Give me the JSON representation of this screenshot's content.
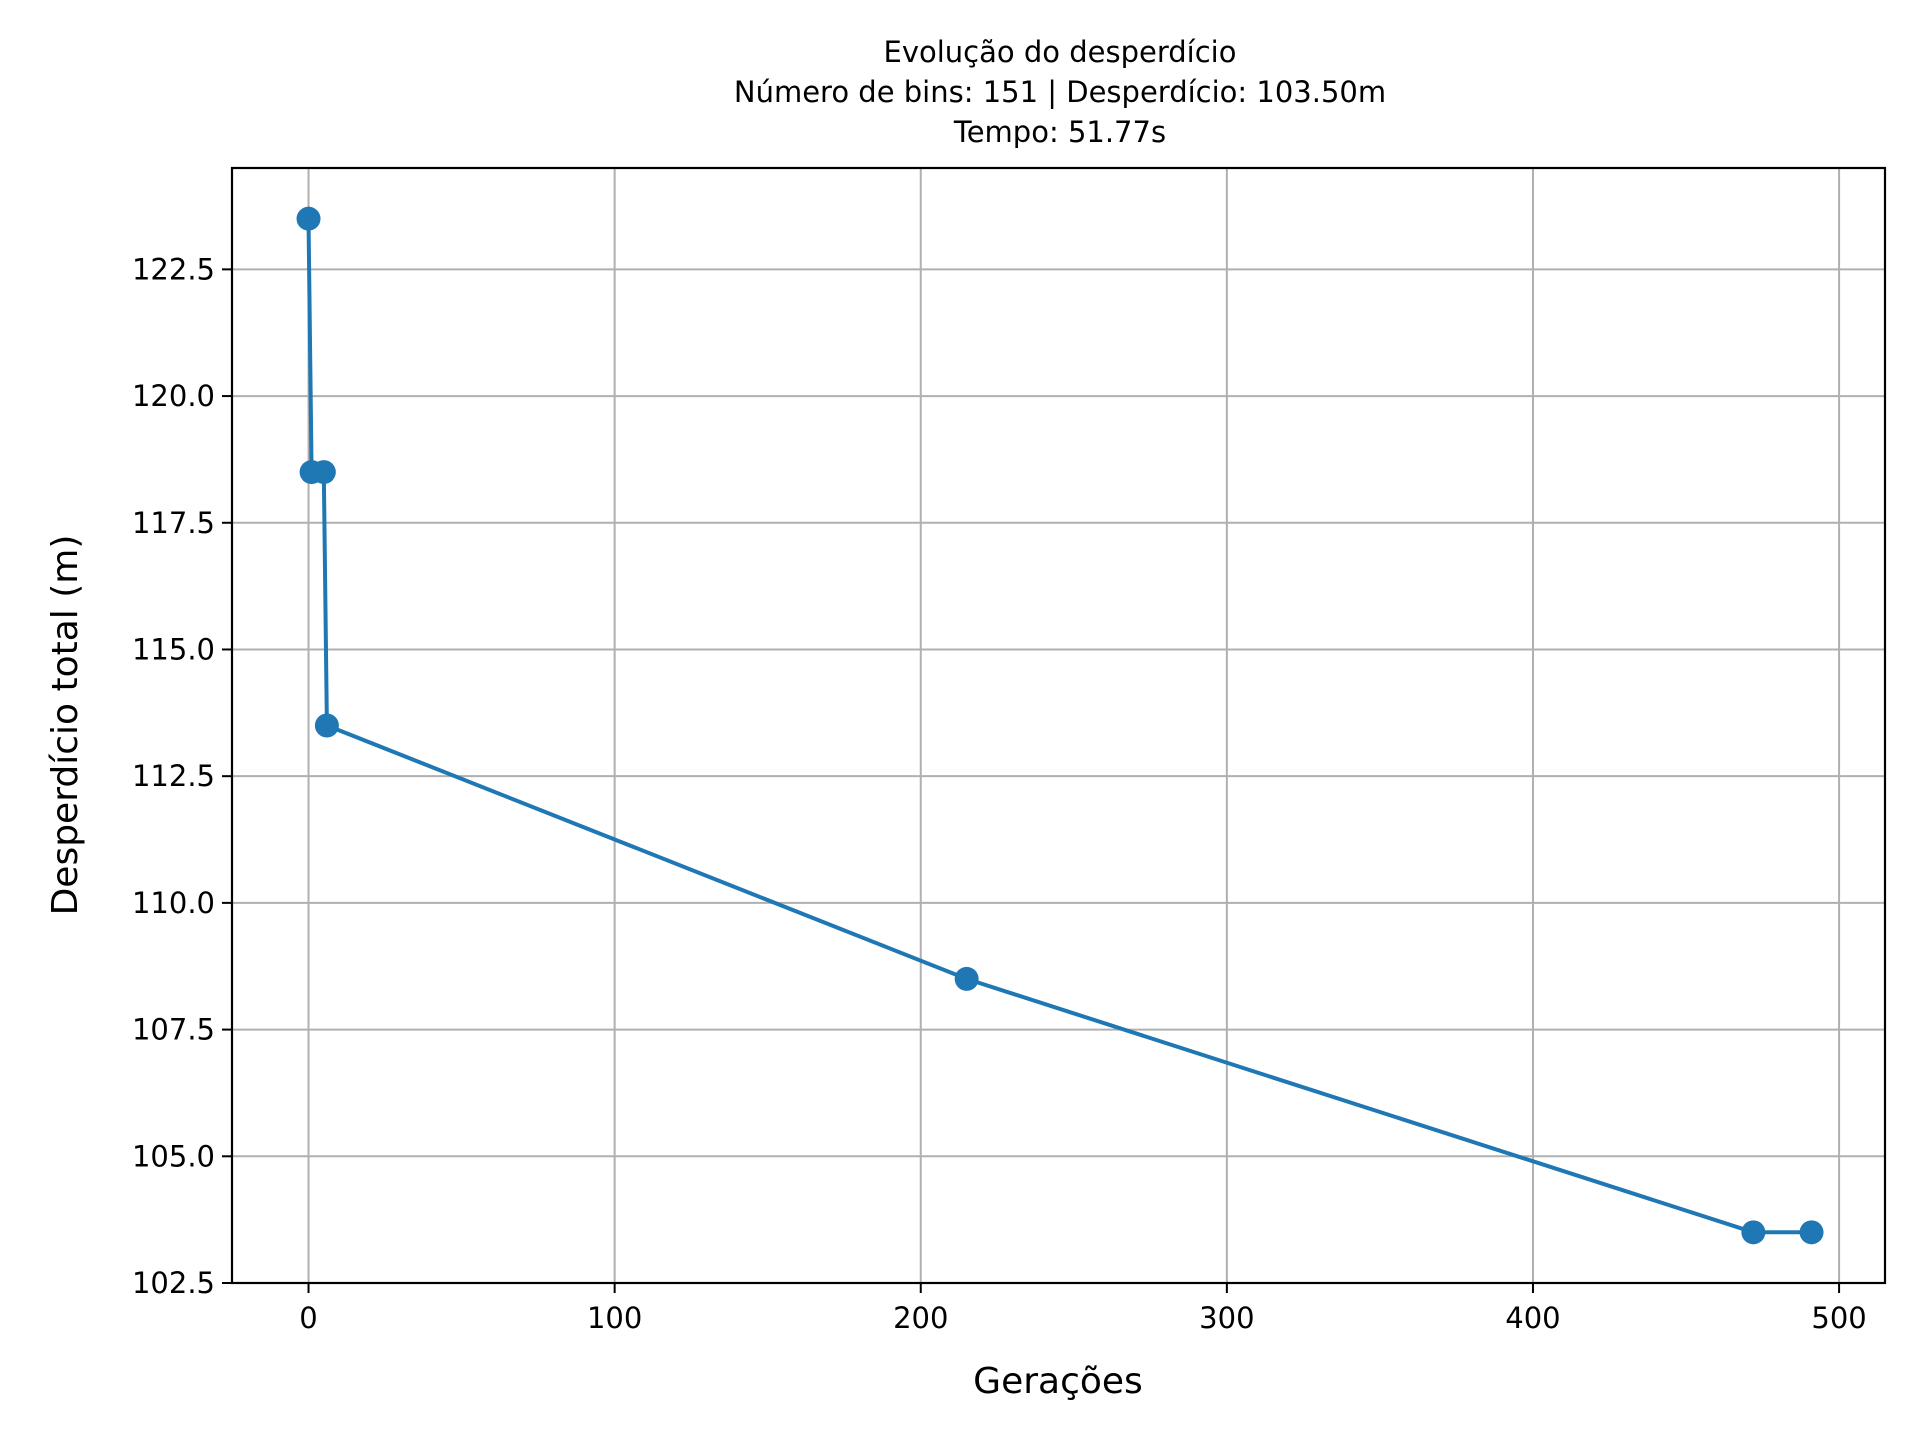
{
  "chart_data": {
    "type": "line",
    "title_lines": [
      "Evolução do desperdício",
      "Número de bins: 151 | Desperdício: 103.50m",
      "Tempo: 51.77s"
    ],
    "xlabel": "Gerações",
    "ylabel": "Desperdício total (m)",
    "xlim": [
      -25,
      515
    ],
    "ylim": [
      102.5,
      124.5
    ],
    "xticks": [
      0,
      100,
      200,
      300,
      400,
      500
    ],
    "xtick_labels": [
      "0",
      "100",
      "200",
      "300",
      "400",
      "500"
    ],
    "yticks": [
      102.5,
      105.0,
      107.5,
      110.0,
      112.5,
      115.0,
      117.5,
      120.0,
      122.5
    ],
    "ytick_labels": [
      "102.5",
      "105.0",
      "107.5",
      "110.0",
      "112.5",
      "115.0",
      "117.5",
      "120.0",
      "122.5"
    ],
    "grid": true,
    "series": [
      {
        "color": "#1f77b4",
        "marker": "circle",
        "x": [
          0,
          1,
          5,
          6,
          215,
          472,
          491
        ],
        "y": [
          123.5,
          118.5,
          118.5,
          113.5,
          108.5,
          103.5,
          103.5
        ]
      }
    ]
  }
}
